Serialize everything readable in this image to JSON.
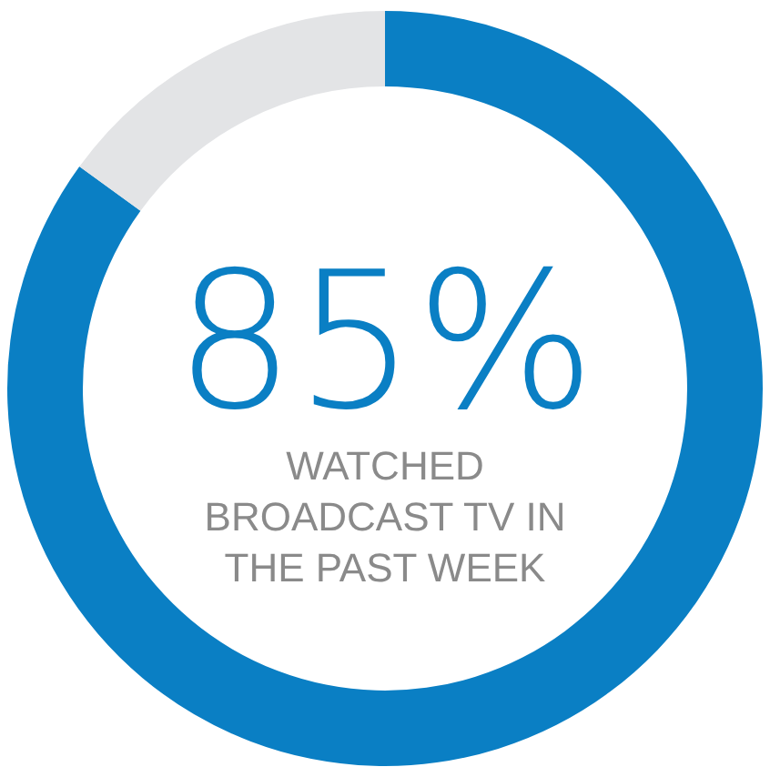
{
  "chart_data": {
    "type": "donut",
    "categories": [
      null,
      null
    ],
    "values": [
      85,
      15
    ],
    "colors": [
      "#0a7fc4",
      "#e3e4e6"
    ],
    "value_labels": [
      "85%",
      null
    ],
    "annotations": [
      "WATCHED BROADCAST TV IN THE PAST WEEK"
    ]
  }
}
